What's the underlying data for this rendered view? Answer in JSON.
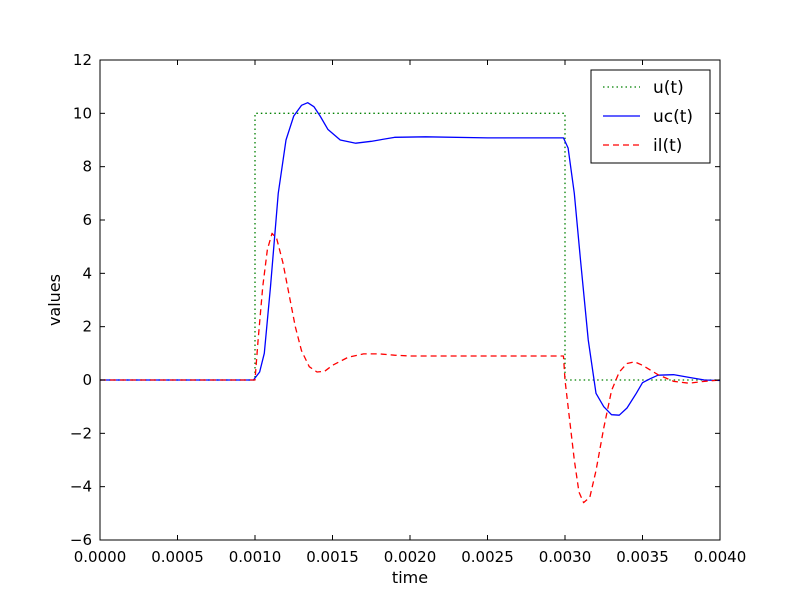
{
  "chart_data": {
    "type": "line",
    "xlabel": "time",
    "ylabel": "values",
    "xlim": [
      0,
      0.004
    ],
    "ylim": [
      -6,
      12
    ],
    "xticks": [
      "0.0000",
      "0.0005",
      "0.0010",
      "0.0015",
      "0.0020",
      "0.0025",
      "0.0030",
      "0.0035",
      "0.0040"
    ],
    "yticks": [
      "−6",
      "−4",
      "−2",
      "0",
      "2",
      "4",
      "6",
      "8",
      "10",
      "12"
    ],
    "grid": false,
    "legend_position": "top-right",
    "series": [
      {
        "name": "u(t)",
        "color": "#008000",
        "style": "dotted",
        "points": [
          [
            0,
            0
          ],
          [
            0.001,
            0
          ],
          [
            0.001,
            10
          ],
          [
            0.003,
            10
          ],
          [
            0.003,
            0
          ],
          [
            0.004,
            0
          ]
        ]
      },
      {
        "name": "uc(t)",
        "color": "#0000ff",
        "style": "solid",
        "points": [
          [
            0,
            0
          ],
          [
            0.00099,
            0
          ],
          [
            0.00103,
            0.3
          ],
          [
            0.00106,
            1.0
          ],
          [
            0.0011,
            3.5
          ],
          [
            0.00115,
            7.0
          ],
          [
            0.0012,
            9.0
          ],
          [
            0.00125,
            9.9
          ],
          [
            0.0013,
            10.3
          ],
          [
            0.00134,
            10.4
          ],
          [
            0.00138,
            10.25
          ],
          [
            0.00142,
            9.9
          ],
          [
            0.00147,
            9.4
          ],
          [
            0.00155,
            9.0
          ],
          [
            0.00165,
            8.88
          ],
          [
            0.00175,
            8.95
          ],
          [
            0.0019,
            9.1
          ],
          [
            0.0021,
            9.12
          ],
          [
            0.0025,
            9.08
          ],
          [
            0.0028,
            9.08
          ],
          [
            0.00299,
            9.08
          ],
          [
            0.00302,
            8.7
          ],
          [
            0.00306,
            7.0
          ],
          [
            0.0031,
            4.5
          ],
          [
            0.00315,
            1.5
          ],
          [
            0.0032,
            -0.5
          ],
          [
            0.00325,
            -1.0
          ],
          [
            0.0033,
            -1.3
          ],
          [
            0.00335,
            -1.32
          ],
          [
            0.0034,
            -1.05
          ],
          [
            0.00346,
            -0.5
          ],
          [
            0.0035,
            -0.1
          ],
          [
            0.00355,
            0.05
          ],
          [
            0.0036,
            0.18
          ],
          [
            0.0037,
            0.2
          ],
          [
            0.0038,
            0.1
          ],
          [
            0.0039,
            0.0
          ],
          [
            0.004,
            -0.02
          ]
        ]
      },
      {
        "name": "il(t)",
        "color": "#ff0000",
        "style": "dashed",
        "points": [
          [
            0,
            0
          ],
          [
            0.001,
            0
          ],
          [
            0.00102,
            1.5
          ],
          [
            0.00105,
            3.5
          ],
          [
            0.00108,
            4.9
          ],
          [
            0.00111,
            5.5
          ],
          [
            0.00114,
            5.3
          ],
          [
            0.00118,
            4.4
          ],
          [
            0.00122,
            3.2
          ],
          [
            0.00126,
            2.0
          ],
          [
            0.0013,
            1.1
          ],
          [
            0.00135,
            0.5
          ],
          [
            0.0014,
            0.3
          ],
          [
            0.00145,
            0.33
          ],
          [
            0.0015,
            0.55
          ],
          [
            0.0016,
            0.85
          ],
          [
            0.0017,
            0.98
          ],
          [
            0.0018,
            0.98
          ],
          [
            0.0019,
            0.93
          ],
          [
            0.002,
            0.9
          ],
          [
            0.0025,
            0.9
          ],
          [
            0.00299,
            0.9
          ],
          [
            0.003,
            0.0
          ],
          [
            0.00303,
            -1.5
          ],
          [
            0.00306,
            -3.0
          ],
          [
            0.00309,
            -4.2
          ],
          [
            0.00312,
            -4.6
          ],
          [
            0.00316,
            -4.4
          ],
          [
            0.0032,
            -3.4
          ],
          [
            0.00325,
            -1.8
          ],
          [
            0.0033,
            -0.4
          ],
          [
            0.00335,
            0.3
          ],
          [
            0.0034,
            0.62
          ],
          [
            0.00345,
            0.68
          ],
          [
            0.0035,
            0.55
          ],
          [
            0.0036,
            0.2
          ],
          [
            0.0037,
            -0.05
          ],
          [
            0.0038,
            -0.12
          ],
          [
            0.0039,
            -0.05
          ],
          [
            0.004,
            0.0
          ]
        ]
      }
    ]
  }
}
